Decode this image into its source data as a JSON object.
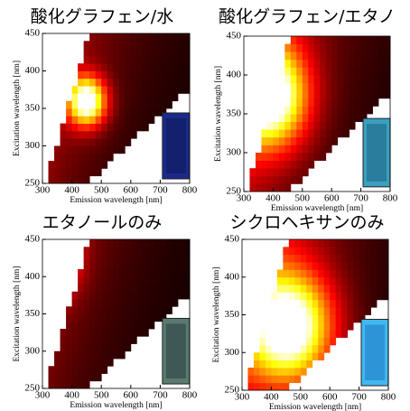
{
  "chart_data": [
    {
      "type": "heatmap",
      "title": "酸化グラフェン/水",
      "x_label": "Emission wavelength [nm]",
      "y_label": "Excitation wavelength [nm]",
      "xlim": [
        300,
        800
      ],
      "ylim": [
        250,
        450
      ],
      "xticks": [
        300,
        400,
        500,
        600,
        700,
        800
      ],
      "yticks": [
        250,
        300,
        350,
        400,
        450
      ]
    },
    {
      "type": "heatmap",
      "title": "酸化グラフェン/エタノ",
      "x_label": "Emission wavelength [nm]",
      "y_label": "Excitation wavelength [nm]",
      "xlim": [
        300,
        800
      ],
      "ylim": [
        250,
        450
      ],
      "xticks": [
        300,
        400,
        500,
        600,
        700,
        800
      ],
      "yticks": [
        250,
        300,
        350,
        400,
        450
      ]
    },
    {
      "type": "heatmap",
      "title": "エタノールのみ",
      "x_label": "Emission wavelength [nm]",
      "y_label": "Excitation wavelength [nm]",
      "xlim": [
        300,
        800
      ],
      "ylim": [
        250,
        450
      ],
      "xticks": [
        300,
        400,
        500,
        600,
        700,
        800
      ],
      "yticks": [
        250,
        300,
        350,
        400,
        450
      ]
    },
    {
      "type": "heatmap",
      "title": "シクロヘキサンのみ",
      "x_label": "Emission wavelength [nm]",
      "y_label": "Excitation wavelength [nm]",
      "xlim": [
        300,
        800
      ],
      "ylim": [
        250,
        450
      ],
      "xticks": [
        300,
        400,
        500,
        600,
        700,
        800
      ],
      "yticks": [
        250,
        300,
        350,
        400,
        450
      ]
    }
  ]
}
